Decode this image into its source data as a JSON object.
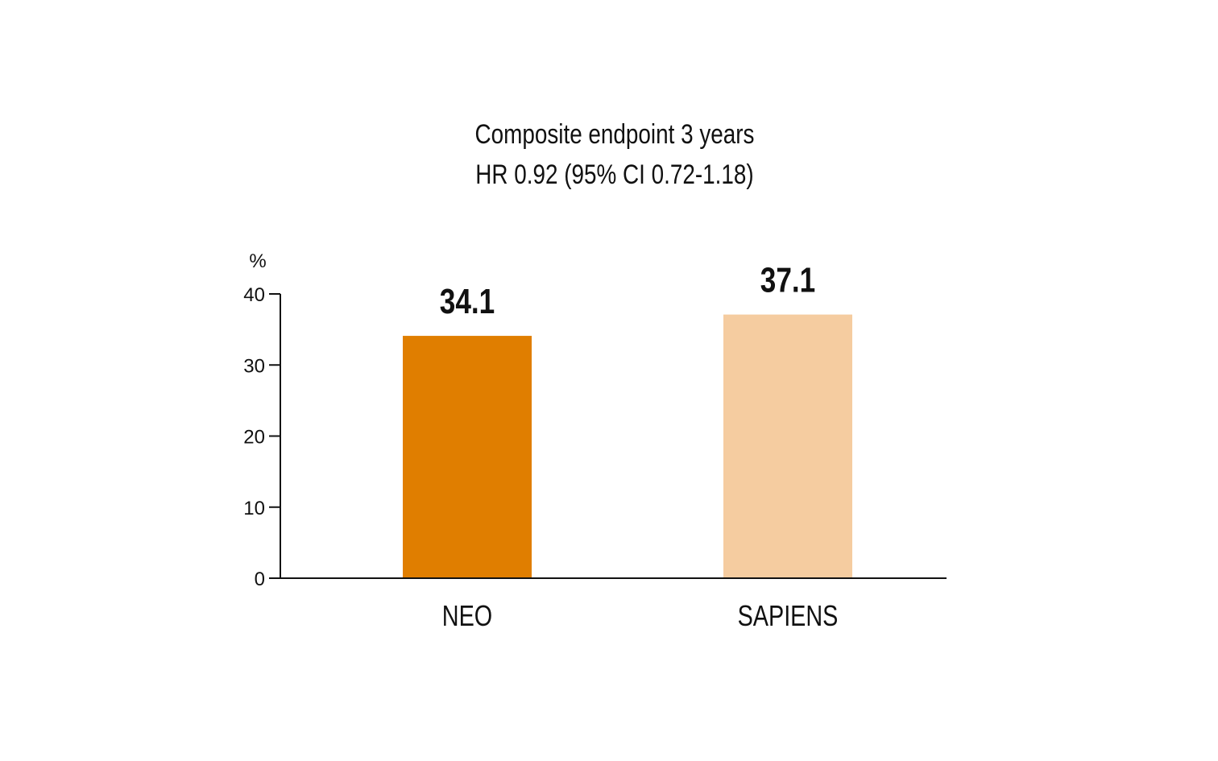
{
  "chart_data": {
    "type": "bar",
    "title": "Composite endpoint 3 years",
    "subtitle": "HR 0.92 (95% CI 0.72-1.18)",
    "ylabel": "%",
    "xlabel": "",
    "ylim": [
      0,
      40
    ],
    "yticks": [
      "0",
      "10",
      "20",
      "30",
      "40"
    ],
    "categories": [
      "NEO",
      "SAPIENS"
    ],
    "values": [
      34.1,
      37.1
    ],
    "value_labels": [
      "34.1",
      "37.1"
    ],
    "colors": [
      "#E07E00",
      "#F5CCA0"
    ],
    "grid": false
  }
}
